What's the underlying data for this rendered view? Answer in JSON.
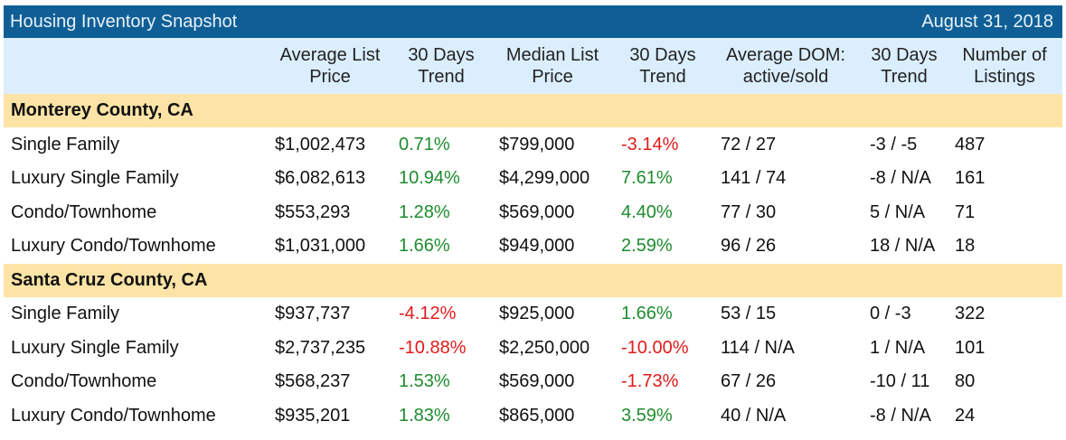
{
  "title": "Housing Inventory Snapshot",
  "date": "August 31, 2018",
  "columns": [
    "Average List\nPrice",
    "30 Days\nTrend",
    "Median List\nPrice",
    "30 Days\nTrend",
    "Average DOM:\nactive/sold",
    "30 Days\nTrend",
    "Number of\nListings"
  ],
  "groups": [
    {
      "name": "Monterey County, CA",
      "rows": [
        {
          "type": "Single Family",
          "avg_price": "$1,002,473",
          "avg_trend": "0.71%",
          "median_price": "$799,000",
          "median_trend": "-3.14%",
          "dom": "72 / 27",
          "dom_trend": "-3 / -5",
          "listings": "487"
        },
        {
          "type": "Luxury Single Family",
          "avg_price": "$6,082,613",
          "avg_trend": "10.94%",
          "median_price": "$4,299,000",
          "median_trend": "7.61%",
          "dom": "141 / 74",
          "dom_trend": "-8 / N/A",
          "listings": "161"
        },
        {
          "type": "Condo/Townhome",
          "avg_price": "$553,293",
          "avg_trend": "1.28%",
          "median_price": "$569,000",
          "median_trend": "4.40%",
          "dom": "77 / 30",
          "dom_trend": "5 / N/A",
          "listings": "71"
        },
        {
          "type": "Luxury Condo/Townhome",
          "avg_price": "$1,031,000",
          "avg_trend": "1.66%",
          "median_price": "$949,000",
          "median_trend": "2.59%",
          "dom": "96 / 26",
          "dom_trend": "18 / N/A",
          "listings": "18"
        }
      ]
    },
    {
      "name": "Santa Cruz County, CA",
      "rows": [
        {
          "type": "Single Family",
          "avg_price": "$937,737",
          "avg_trend": "-4.12%",
          "median_price": "$925,000",
          "median_trend": "1.66%",
          "dom": "53 / 15",
          "dom_trend": "0 / -3",
          "listings": "322"
        },
        {
          "type": "Luxury Single Family",
          "avg_price": "$2,737,235",
          "avg_trend": "-10.88%",
          "median_price": "$2,250,000",
          "median_trend": "-10.00%",
          "dom": "114 / N/A",
          "dom_trend": "1 / N/A",
          "listings": "101"
        },
        {
          "type": "Condo/Townhome",
          "avg_price": "$568,237",
          "avg_trend": "1.53%",
          "median_price": "$569,000",
          "median_trend": "-1.73%",
          "dom": "67 / 26",
          "dom_trend": "-10 / 11",
          "listings": "80"
        },
        {
          "type": "Luxury Condo/Townhome",
          "avg_price": "$935,201",
          "avg_trend": "1.83%",
          "median_price": "$865,000",
          "median_trend": "3.59%",
          "dom": "40 / N/A",
          "dom_trend": "-8 / N/A",
          "listings": "24"
        }
      ]
    }
  ],
  "colors": {
    "title_bar": "#0f5f96",
    "header_bg": "#dbeefe",
    "group_bg": "#fde4a6",
    "positive": "#1e8c2e",
    "negative": "#e01b1b"
  }
}
